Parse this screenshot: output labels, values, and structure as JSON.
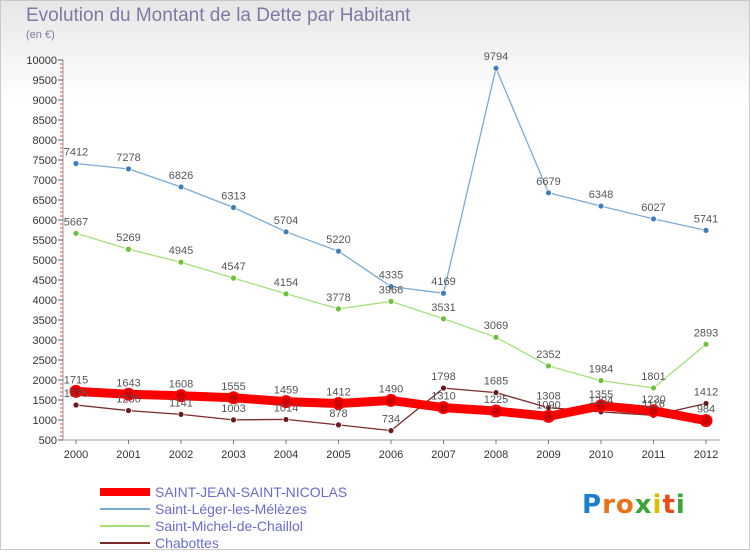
{
  "title": "Evolution du Montant de la Dette par Habitant",
  "subtitle": "(en €)",
  "logo": {
    "text": "Proxiti",
    "letters": [
      "P",
      "r",
      "o",
      "x",
      "i",
      "t",
      "i"
    ],
    "colors": [
      "#1a7fd0",
      "#e8731a",
      "#e8731a",
      "#3aa63a",
      "#d8c000",
      "#e84a1a",
      "#3aa63a"
    ]
  },
  "chart_data": {
    "type": "line",
    "title": "Evolution du Montant de la Dette par Habitant",
    "subtitle": "(en €)",
    "x": [
      "2000",
      "2001",
      "2002",
      "2003",
      "2004",
      "2005",
      "2006",
      "2007",
      "2008",
      "2009",
      "2010",
      "2011",
      "2012"
    ],
    "ylim": [
      500,
      10000
    ],
    "yticks": [
      "500",
      "1000",
      "1500",
      "2000",
      "2500",
      "3000",
      "3500",
      "4000",
      "4500",
      "5000",
      "5500",
      "6000",
      "6500",
      "7000",
      "7500",
      "8000",
      "8500",
      "9000",
      "9500",
      "10000"
    ],
    "grid": false,
    "legend_position": "bottom-left",
    "series": [
      {
        "name": "SAINT-JEAN-SAINT-NICOLAS",
        "color": "#ff0000",
        "marker": "#cc0000",
        "values": [
          1715,
          1643,
          1608,
          1555,
          1459,
          1412,
          1490,
          1310,
          1225,
          1090,
          1355,
          1230,
          984
        ],
        "labels": [
          "1715",
          "1643",
          "1608",
          "1555",
          "1459",
          "1412",
          "1490",
          "1310",
          "1225",
          "1090",
          "1355",
          "1230",
          "984"
        ]
      },
      {
        "name": "Saint-Léger-les-Mélèzes",
        "color": "#7aaad6",
        "marker": "#3d7fbf",
        "values": [
          7412,
          7278,
          6826,
          6313,
          5704,
          5220,
          4335,
          4169,
          9794,
          6679,
          6348,
          6027,
          5741
        ],
        "labels": [
          "7412",
          "7278",
          "6826",
          "6313",
          "5704",
          "5220",
          "4335",
          "4169",
          "9794",
          "6679",
          "6348",
          "6027",
          "5741"
        ]
      },
      {
        "name": "Saint-Michel-de-Chaillol",
        "color": "#a6e07a",
        "marker": "#6cc23a",
        "values": [
          5667,
          5269,
          4945,
          4547,
          4154,
          3778,
          3966,
          3531,
          3069,
          2352,
          1984,
          1801,
          2893
        ],
        "labels": [
          "5667",
          "5269",
          "4945",
          "4547",
          "4154",
          "3778",
          "3966",
          "3531",
          "3069",
          "2352",
          "1984",
          "1801",
          "2893"
        ]
      },
      {
        "name": "Chabottes",
        "color": "#7a2a2a",
        "marker": "#6b1a1a",
        "values": [
          1375,
          1236,
          1141,
          1003,
          1014,
          878,
          734,
          1798,
          1685,
          1308,
          1204,
          1116,
          1412
        ],
        "labels": [
          "1375",
          "1236",
          "1141",
          "1003",
          "1014",
          "878",
          "734",
          "1798",
          "1685",
          "1308",
          "1204",
          "1116",
          "1412"
        ]
      }
    ]
  }
}
